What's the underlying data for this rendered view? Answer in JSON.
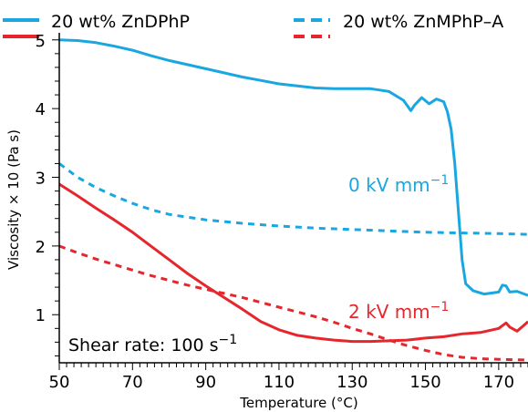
{
  "chart_data": {
    "type": "line",
    "xlabel": "Temperature (°C)",
    "ylabel": "Viscosity × 10 (Pa s)",
    "xlim": [
      50,
      178
    ],
    "ylim": [
      0.3,
      5.05
    ],
    "x_ticks": [
      50,
      70,
      90,
      110,
      130,
      150,
      170
    ],
    "y_ticks": [
      1,
      2,
      3,
      4,
      5
    ],
    "x_tick_labels": [
      "50",
      "70",
      "90",
      "110",
      "130",
      "150",
      "170"
    ],
    "y_tick_labels": [
      "1",
      "2",
      "3",
      "4",
      "5"
    ],
    "grid": false,
    "legend_position": "top",
    "legend": [
      {
        "label": "20 wt% ZnDPhP",
        "style": "solid",
        "color": "#1aa7e1"
      },
      {
        "label": "20 wt% ZnMPhP–A",
        "style": "dashed",
        "color": "#1aa7e1"
      }
    ],
    "annotations": {
      "field_0": {
        "text": "0 kV mm",
        "sup": "−1",
        "color": "#1aa7e1"
      },
      "field_2": {
        "text": "2 kV mm",
        "sup": "−1",
        "color": "#e5272d"
      },
      "shear_rate": {
        "text": "Shear rate: 100 s",
        "sup": "−1"
      }
    },
    "series": [
      {
        "name": "20 wt% ZnDPhP, 0 kV mm⁻¹",
        "color": "#1aa7e1",
        "style": "solid",
        "points": [
          [
            50,
            5.0
          ],
          [
            55,
            4.99
          ],
          [
            60,
            4.96
          ],
          [
            65,
            4.91
          ],
          [
            70,
            4.85
          ],
          [
            75,
            4.77
          ],
          [
            80,
            4.7
          ],
          [
            85,
            4.64
          ],
          [
            90,
            4.58
          ],
          [
            95,
            4.52
          ],
          [
            100,
            4.46
          ],
          [
            105,
            4.41
          ],
          [
            110,
            4.36
          ],
          [
            115,
            4.33
          ],
          [
            120,
            4.3
          ],
          [
            125,
            4.29
          ],
          [
            130,
            4.29
          ],
          [
            135,
            4.29
          ],
          [
            140,
            4.25
          ],
          [
            144,
            4.12
          ],
          [
            146,
            3.97
          ],
          [
            147,
            4.05
          ],
          [
            149,
            4.16
          ],
          [
            151,
            4.07
          ],
          [
            153,
            4.14
          ],
          [
            155,
            4.1
          ],
          [
            156,
            3.95
          ],
          [
            157,
            3.7
          ],
          [
            158,
            3.2
          ],
          [
            159,
            2.5
          ],
          [
            160,
            1.8
          ],
          [
            161,
            1.45
          ],
          [
            163,
            1.35
          ],
          [
            166,
            1.3
          ],
          [
            170,
            1.33
          ],
          [
            171,
            1.43
          ],
          [
            172,
            1.42
          ],
          [
            173,
            1.33
          ],
          [
            175,
            1.34
          ],
          [
            177,
            1.3
          ],
          [
            178,
            1.28
          ]
        ]
      },
      {
        "name": "20 wt% ZnMPhP–A, 0 kV mm⁻¹",
        "color": "#1aa7e1",
        "style": "dashed",
        "points": [
          [
            50,
            3.2
          ],
          [
            55,
            3.0
          ],
          [
            60,
            2.85
          ],
          [
            65,
            2.73
          ],
          [
            70,
            2.62
          ],
          [
            75,
            2.53
          ],
          [
            80,
            2.46
          ],
          [
            90,
            2.38
          ],
          [
            100,
            2.33
          ],
          [
            110,
            2.29
          ],
          [
            120,
            2.26
          ],
          [
            130,
            2.24
          ],
          [
            140,
            2.22
          ],
          [
            150,
            2.2
          ],
          [
            160,
            2.19
          ],
          [
            170,
            2.18
          ],
          [
            178,
            2.17
          ]
        ]
      },
      {
        "name": "20 wt% ZnDPhP, 2 kV mm⁻¹",
        "color": "#e5272d",
        "style": "solid",
        "points": [
          [
            50,
            2.9
          ],
          [
            55,
            2.73
          ],
          [
            60,
            2.55
          ],
          [
            65,
            2.38
          ],
          [
            70,
            2.2
          ],
          [
            75,
            2.0
          ],
          [
            80,
            1.8
          ],
          [
            85,
            1.6
          ],
          [
            90,
            1.42
          ],
          [
            95,
            1.25
          ],
          [
            100,
            1.08
          ],
          [
            105,
            0.9
          ],
          [
            110,
            0.78
          ],
          [
            115,
            0.7
          ],
          [
            120,
            0.66
          ],
          [
            125,
            0.63
          ],
          [
            130,
            0.61
          ],
          [
            135,
            0.61
          ],
          [
            140,
            0.62
          ],
          [
            145,
            0.63
          ],
          [
            150,
            0.66
          ],
          [
            155,
            0.68
          ],
          [
            160,
            0.72
          ],
          [
            165,
            0.74
          ],
          [
            170,
            0.8
          ],
          [
            172,
            0.88
          ],
          [
            173,
            0.82
          ],
          [
            175,
            0.76
          ],
          [
            177,
            0.85
          ],
          [
            178,
            0.9
          ]
        ]
      },
      {
        "name": "20 wt% ZnMPhP–A, 2 kV mm⁻¹",
        "color": "#e5272d",
        "style": "dashed",
        "points": [
          [
            50,
            2.0
          ],
          [
            55,
            1.9
          ],
          [
            60,
            1.81
          ],
          [
            65,
            1.73
          ],
          [
            70,
            1.65
          ],
          [
            75,
            1.57
          ],
          [
            80,
            1.5
          ],
          [
            85,
            1.43
          ],
          [
            90,
            1.37
          ],
          [
            95,
            1.31
          ],
          [
            100,
            1.25
          ],
          [
            105,
            1.18
          ],
          [
            110,
            1.11
          ],
          [
            115,
            1.04
          ],
          [
            120,
            0.97
          ],
          [
            125,
            0.89
          ],
          [
            130,
            0.8
          ],
          [
            135,
            0.72
          ],
          [
            140,
            0.63
          ],
          [
            145,
            0.55
          ],
          [
            150,
            0.48
          ],
          [
            155,
            0.42
          ],
          [
            160,
            0.38
          ],
          [
            165,
            0.36
          ],
          [
            170,
            0.35
          ],
          [
            178,
            0.34
          ]
        ]
      }
    ]
  }
}
